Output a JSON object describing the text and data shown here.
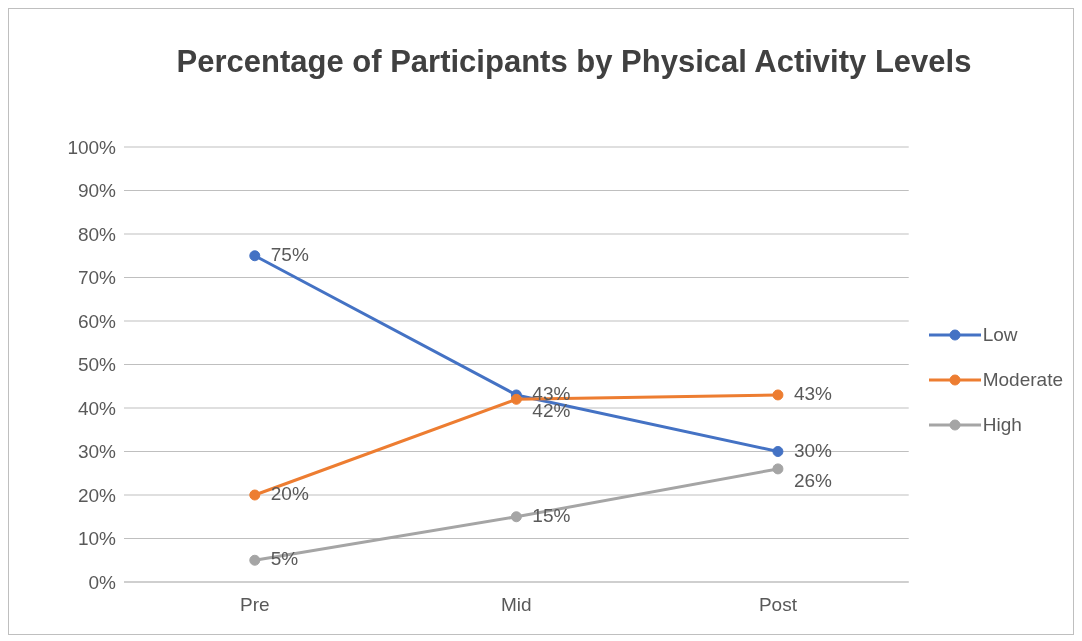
{
  "chart_data": {
    "type": "line",
    "title": "Percentage of Participants by Physical Activity Levels",
    "categories": [
      "Pre",
      "Mid",
      "Post"
    ],
    "series": [
      {
        "name": "Low",
        "color": "#4472c4",
        "values": [
          75,
          43,
          30
        ],
        "value_labels": [
          "75%",
          "43%",
          "30%"
        ]
      },
      {
        "name": "Moderate",
        "color": "#ed7d31",
        "values": [
          20,
          42,
          43
        ],
        "value_labels": [
          "20%",
          "42%",
          "43%"
        ]
      },
      {
        "name": "High",
        "color": "#a5a5a5",
        "values": [
          5,
          15,
          26
        ],
        "value_labels": [
          "5%",
          "15%",
          "26%"
        ]
      }
    ],
    "ylim": [
      0,
      100
    ],
    "yticks": [
      {
        "value": 0,
        "label": "0%"
      },
      {
        "value": 10,
        "label": "10%"
      },
      {
        "value": 20,
        "label": "20%"
      },
      {
        "value": 30,
        "label": "30%"
      },
      {
        "value": 40,
        "label": "40%"
      },
      {
        "value": 50,
        "label": "50%"
      },
      {
        "value": 60,
        "label": "60%"
      },
      {
        "value": 70,
        "label": "70%"
      },
      {
        "value": 80,
        "label": "80%"
      },
      {
        "value": 90,
        "label": "90%"
      },
      {
        "value": 100,
        "label": "100%"
      }
    ],
    "grid": "y",
    "legend": "right",
    "marker": "circle",
    "line_style": "solid"
  }
}
